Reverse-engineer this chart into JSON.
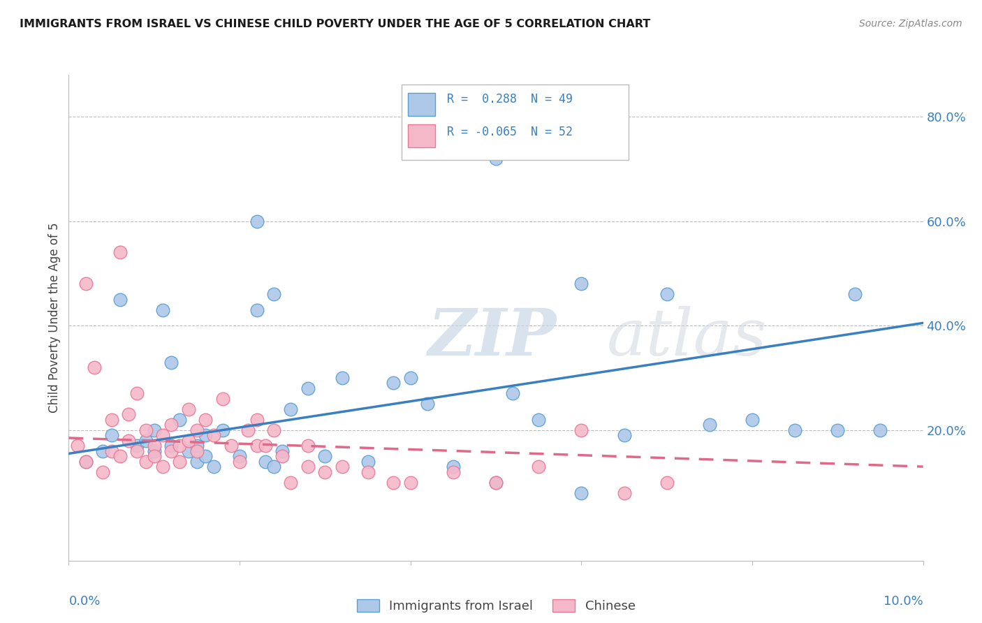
{
  "title": "IMMIGRANTS FROM ISRAEL VS CHINESE CHILD POVERTY UNDER THE AGE OF 5 CORRELATION CHART",
  "source": "Source: ZipAtlas.com",
  "ylabel": "Child Poverty Under the Age of 5",
  "y_ticks_right": [
    0.2,
    0.4,
    0.6,
    0.8
  ],
  "y_tick_labels_right": [
    "20.0%",
    "40.0%",
    "60.0%",
    "80.0%"
  ],
  "xmin": 0.0,
  "xmax": 0.1,
  "ymin": -0.05,
  "ymax": 0.88,
  "legend_r1": "R =  0.288  N = 49",
  "legend_r2": "R = -0.065  N = 52",
  "blue_fill": "#adc8e8",
  "blue_edge": "#5a9fd4",
  "pink_fill": "#f5b8c8",
  "pink_edge": "#e87898",
  "blue_line_color": "#3a80c0",
  "pink_line_color": "#e06888",
  "legend_text_color": "#3a80c0",
  "blue_scatter_x": [
    0.002,
    0.004,
    0.005,
    0.006,
    0.008,
    0.009,
    0.01,
    0.01,
    0.011,
    0.012,
    0.012,
    0.013,
    0.014,
    0.015,
    0.015,
    0.016,
    0.016,
    0.017,
    0.018,
    0.02,
    0.022,
    0.022,
    0.023,
    0.024,
    0.024,
    0.025,
    0.026,
    0.028,
    0.03,
    0.032,
    0.035,
    0.038,
    0.04,
    0.042,
    0.045,
    0.05,
    0.052,
    0.055,
    0.06,
    0.065,
    0.07,
    0.075,
    0.08,
    0.085,
    0.09,
    0.092,
    0.095,
    0.05,
    0.06
  ],
  "blue_scatter_y": [
    0.14,
    0.16,
    0.19,
    0.45,
    0.17,
    0.18,
    0.16,
    0.2,
    0.43,
    0.33,
    0.17,
    0.22,
    0.16,
    0.14,
    0.17,
    0.19,
    0.15,
    0.13,
    0.2,
    0.15,
    0.6,
    0.43,
    0.14,
    0.46,
    0.13,
    0.16,
    0.24,
    0.28,
    0.15,
    0.3,
    0.14,
    0.29,
    0.3,
    0.25,
    0.13,
    0.72,
    0.27,
    0.22,
    0.48,
    0.19,
    0.46,
    0.21,
    0.22,
    0.2,
    0.2,
    0.46,
    0.2,
    0.1,
    0.08
  ],
  "pink_scatter_x": [
    0.001,
    0.002,
    0.002,
    0.003,
    0.004,
    0.005,
    0.005,
    0.006,
    0.006,
    0.007,
    0.007,
    0.008,
    0.008,
    0.009,
    0.009,
    0.01,
    0.01,
    0.011,
    0.011,
    0.012,
    0.012,
    0.013,
    0.013,
    0.014,
    0.014,
    0.015,
    0.015,
    0.016,
    0.017,
    0.018,
    0.019,
    0.02,
    0.021,
    0.022,
    0.022,
    0.023,
    0.024,
    0.025,
    0.026,
    0.028,
    0.028,
    0.03,
    0.032,
    0.035,
    0.038,
    0.04,
    0.045,
    0.05,
    0.055,
    0.06,
    0.065,
    0.07
  ],
  "pink_scatter_y": [
    0.17,
    0.48,
    0.14,
    0.32,
    0.12,
    0.22,
    0.16,
    0.54,
    0.15,
    0.23,
    0.18,
    0.16,
    0.27,
    0.14,
    0.2,
    0.17,
    0.15,
    0.19,
    0.13,
    0.16,
    0.21,
    0.17,
    0.14,
    0.18,
    0.24,
    0.16,
    0.2,
    0.22,
    0.19,
    0.26,
    0.17,
    0.14,
    0.2,
    0.17,
    0.22,
    0.17,
    0.2,
    0.15,
    0.1,
    0.17,
    0.13,
    0.12,
    0.13,
    0.12,
    0.1,
    0.1,
    0.12,
    0.1,
    0.13,
    0.2,
    0.08,
    0.1
  ],
  "blue_trend_x": [
    0.0,
    0.1
  ],
  "blue_trend_y": [
    0.155,
    0.405
  ],
  "pink_trend_x": [
    0.0,
    0.1
  ],
  "pink_trend_y": [
    0.185,
    0.13
  ],
  "watermark_zip": "ZIP",
  "watermark_atlas": "atlas",
  "figsize": [
    14.06,
    8.92
  ],
  "dpi": 100
}
